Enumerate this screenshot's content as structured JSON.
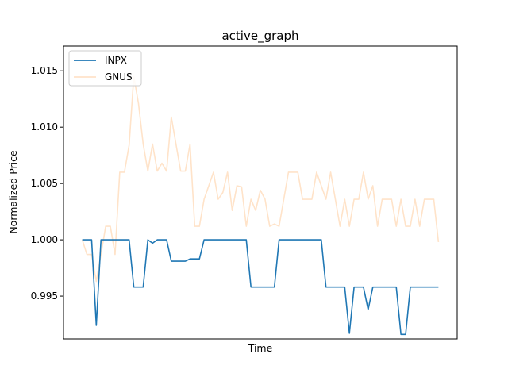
{
  "chart_data": {
    "type": "line",
    "title": "active_graph",
    "xlabel": "Time",
    "ylabel": "Normalized Price",
    "ylim": [
      0.9912,
      1.0172
    ],
    "xlim": [
      -4,
      80
    ],
    "yticks": [
      0.995,
      1.0,
      1.005,
      1.01,
      1.015
    ],
    "ytick_labels": [
      "0.995",
      "1.000",
      "1.005",
      "1.010",
      "1.015"
    ],
    "grid": false,
    "legend_position": "top-left",
    "series": [
      {
        "name": "INPX",
        "color": "#1f77b4",
        "opacity": 1.0,
        "values": [
          1.0,
          1.0,
          1.0,
          0.9924,
          1.0,
          1.0,
          1.0,
          1.0,
          1.0,
          1.0,
          1.0,
          0.9958,
          0.9958,
          0.9958,
          1.0,
          0.9997,
          1.0,
          1.0,
          1.0,
          0.9981,
          0.9981,
          0.9981,
          0.9981,
          0.9983,
          0.9983,
          0.9983,
          1.0,
          1.0,
          1.0,
          1.0,
          1.0,
          1.0,
          1.0,
          1.0,
          1.0,
          1.0,
          0.9958,
          0.9958,
          0.9958,
          0.9958,
          0.9958,
          0.9958,
          1.0,
          1.0,
          1.0,
          1.0,
          1.0,
          1.0,
          1.0,
          1.0,
          1.0,
          1.0,
          0.9958,
          0.9958,
          0.9958,
          0.9958,
          0.9958,
          0.9917,
          0.9958,
          0.9958,
          0.9958,
          0.9938,
          0.9958,
          0.9958,
          0.9958,
          0.9958,
          0.9958,
          0.9958,
          0.9916,
          0.9916,
          0.9958,
          0.9958,
          0.9958,
          0.9958,
          0.9958,
          0.9958,
          0.9958
        ]
      },
      {
        "name": "GNUS",
        "color": "#ffe3c9",
        "opacity": 1.0,
        "values": [
          1.0,
          0.9987,
          0.9987,
          0.9963,
          0.9987,
          1.0012,
          1.0012,
          0.9987,
          1.006,
          1.006,
          1.0084,
          1.0145,
          1.0121,
          1.0085,
          1.0061,
          1.0085,
          1.0061,
          1.0068,
          1.0061,
          1.0109,
          1.0085,
          1.0061,
          1.0061,
          1.0085,
          1.0012,
          1.0012,
          1.0036,
          1.0048,
          1.006,
          1.0036,
          1.0042,
          1.006,
          1.0026,
          1.0048,
          1.0047,
          1.0012,
          1.0036,
          1.0026,
          1.0044,
          1.0036,
          1.0012,
          1.0014,
          1.0012,
          1.0036,
          1.006,
          1.006,
          1.006,
          1.0036,
          1.0036,
          1.0036,
          1.006,
          1.0048,
          1.0036,
          1.006,
          1.0036,
          1.0012,
          1.0036,
          1.0012,
          1.0036,
          1.0036,
          1.006,
          1.0036,
          1.0048,
          1.0012,
          1.0036,
          1.0036,
          1.0036,
          1.0012,
          1.0036,
          1.0012,
          1.0012,
          1.0036,
          1.0012,
          1.0036,
          1.0036,
          1.0036,
          0.9998
        ]
      }
    ]
  }
}
